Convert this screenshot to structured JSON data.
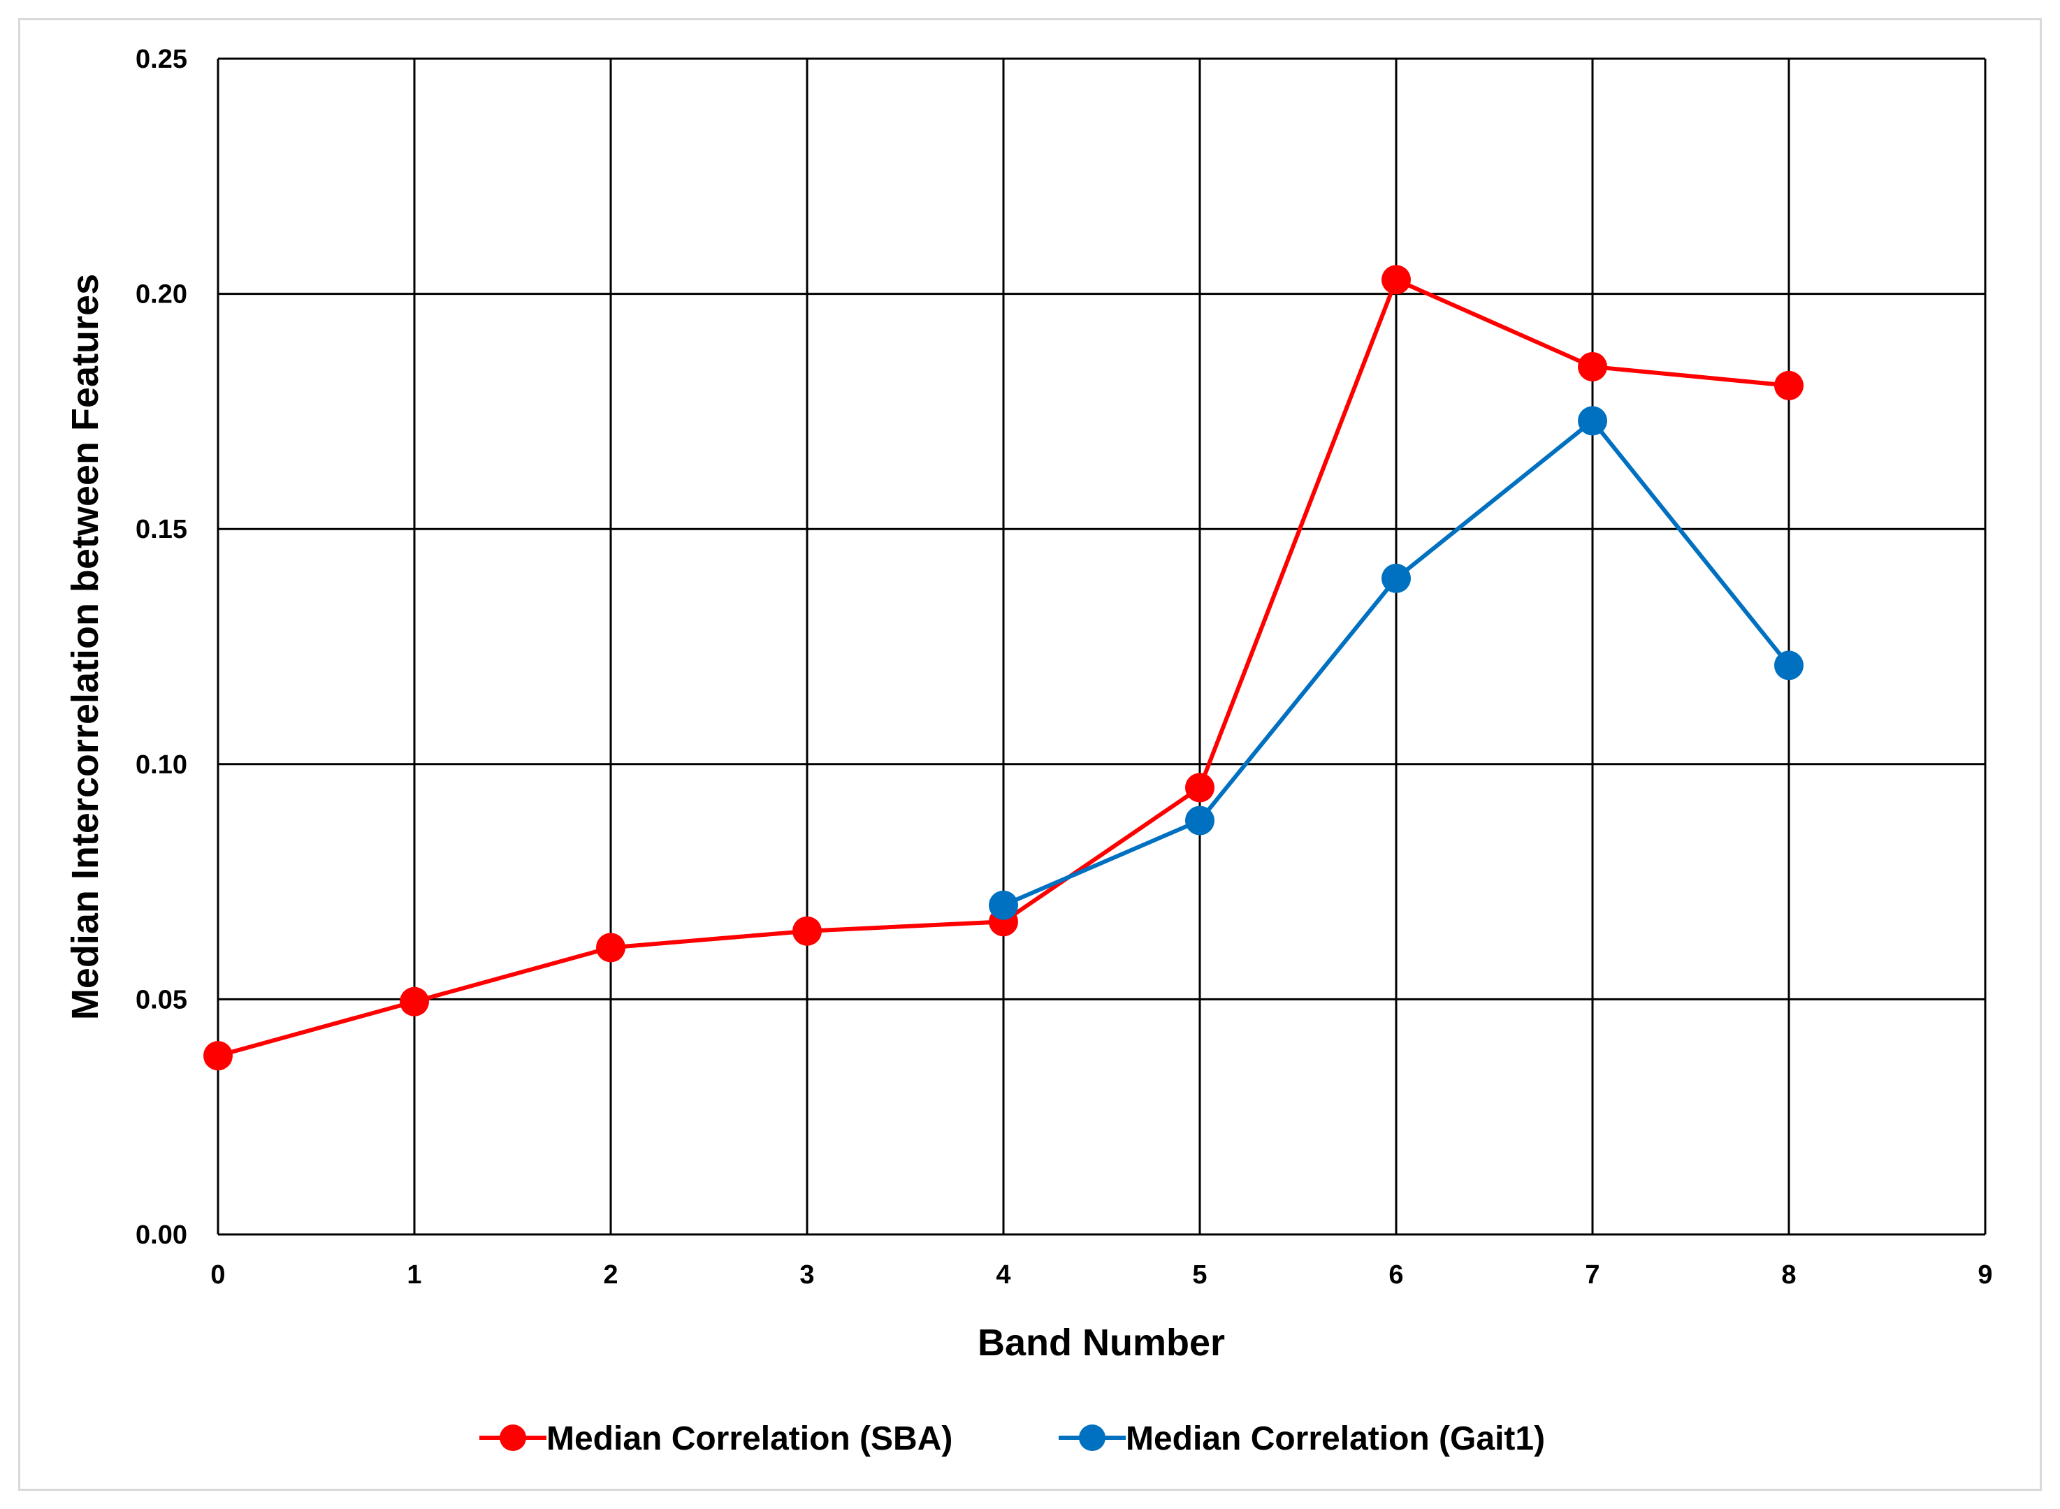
{
  "chart_data": {
    "type": "line",
    "title": "",
    "xlabel": "Band Number",
    "ylabel": "Median Intercorrelation between Features",
    "xlim": [
      0,
      9
    ],
    "ylim": [
      0,
      0.25
    ],
    "x_ticks": [
      "0",
      "1",
      "2",
      "3",
      "4",
      "5",
      "6",
      "7",
      "8",
      "9"
    ],
    "y_ticks": [
      "0.00",
      "0.05",
      "0.10",
      "0.15",
      "0.20",
      "0.25"
    ],
    "grid": true,
    "legend_position": "bottom",
    "series": [
      {
        "name": "Median Correlation (SBA)",
        "color": "#ff0000",
        "x": [
          0,
          1,
          2,
          3,
          4,
          5,
          6,
          7,
          8
        ],
        "y": [
          0.038,
          0.0495,
          0.061,
          0.0645,
          0.0665,
          0.095,
          0.203,
          0.1845,
          0.1805
        ]
      },
      {
        "name": "Median Correlation (Gait1)",
        "color": "#0070c0",
        "x": [
          4,
          5,
          6,
          7,
          8
        ],
        "y": [
          0.07,
          0.088,
          0.1395,
          0.173,
          0.121
        ]
      }
    ]
  }
}
